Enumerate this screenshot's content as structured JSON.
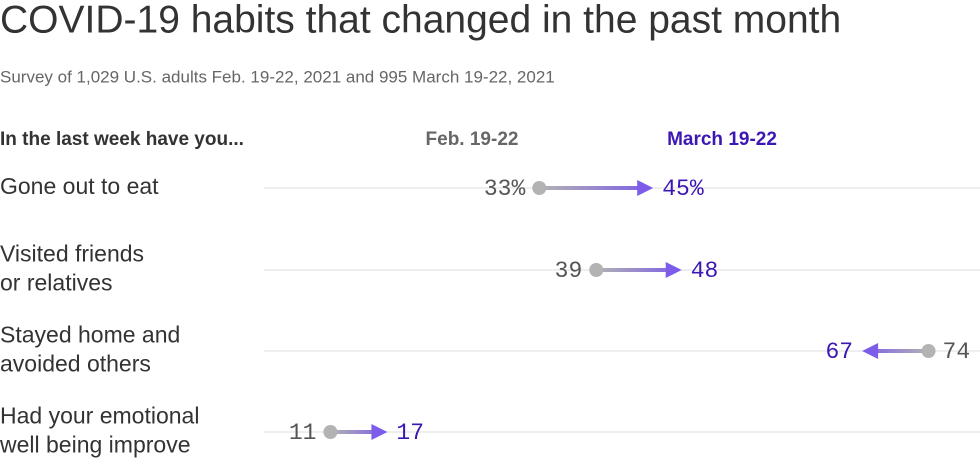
{
  "chart_data": {
    "type": "arrow",
    "title": "COVID-19 habits that changed in the past month",
    "subtitle": "Survey of 1,029 U.S. adults Feb. 19-22, 2021 and 995 March 19-22, 2021",
    "column_header": "In the last week have you...",
    "categories": [
      [
        "Gone out to eat"
      ],
      [
        "Visited friends",
        "or relatives"
      ],
      [
        "Stayed home and",
        "avoided others"
      ],
      [
        "Had your emotional",
        "well being improve"
      ]
    ],
    "series": [
      {
        "name": "Feb. 19-22",
        "color": "#b3b3b3",
        "label_color": "#555555",
        "values": [
          33,
          39,
          74,
          11
        ],
        "value_labels": [
          "33%",
          "39",
          "74",
          "11"
        ]
      },
      {
        "name": "March 19-22",
        "color": "#7c5ce8",
        "label_color": "#3d17b3",
        "values": [
          45,
          48,
          67,
          17
        ],
        "value_labels": [
          "45%",
          "48",
          "67",
          "17"
        ]
      }
    ],
    "xlim": [
      4,
      79
    ]
  }
}
